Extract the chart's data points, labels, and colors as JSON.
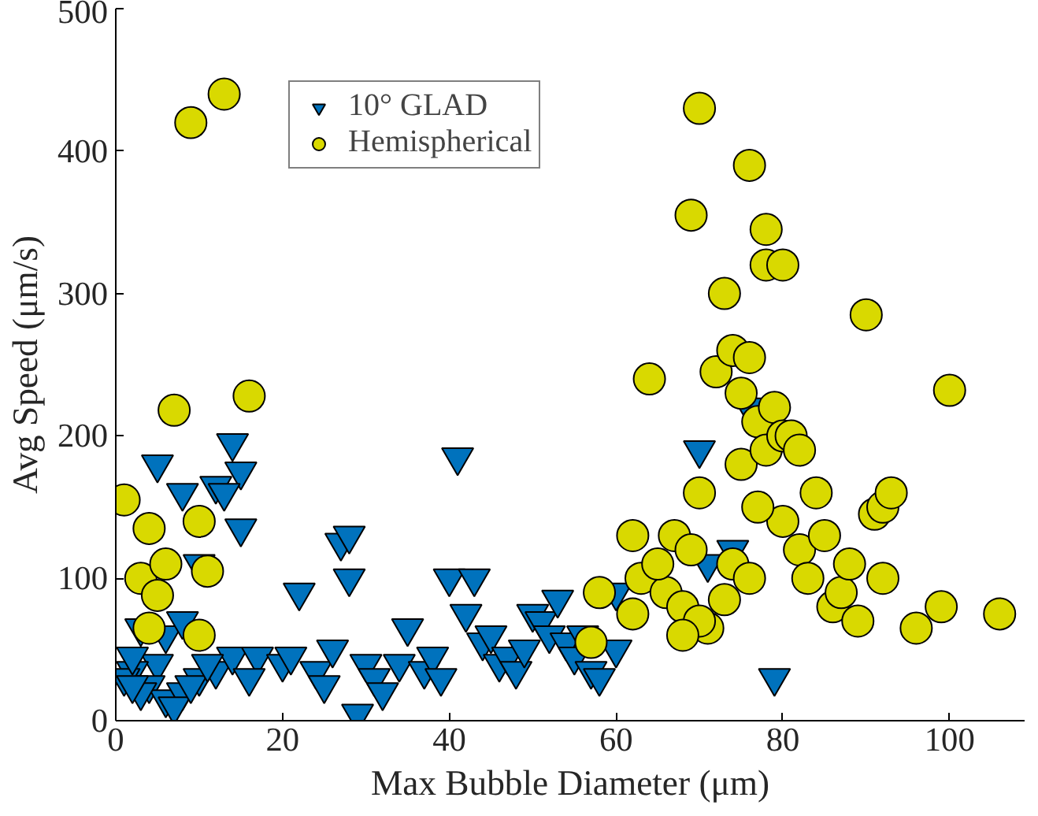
{
  "chart_data": {
    "type": "scatter",
    "xlabel": "Max Bubble Diameter (μm)",
    "ylabel": "Avg Speed (μm/s)",
    "xlim": [
      0,
      109
    ],
    "ylim": [
      0,
      500
    ],
    "xticks": [
      0,
      20,
      40,
      60,
      80,
      100
    ],
    "yticks": [
      0,
      100,
      200,
      300,
      400,
      500
    ],
    "grid": false,
    "legend": "top",
    "series": [
      {
        "name": "10° GLAD",
        "color": "#0072bd",
        "marker": "triangle",
        "x": [
          5,
          8,
          12,
          14,
          15,
          13,
          15,
          3,
          5,
          2,
          4,
          6,
          8,
          10,
          12,
          14,
          17,
          1,
          3,
          7,
          9,
          11,
          16,
          22,
          24,
          27,
          28,
          28,
          29,
          30,
          31,
          32,
          34,
          37,
          38,
          39,
          40,
          41,
          42,
          43,
          44,
          45,
          46,
          47,
          48,
          49,
          50,
          51,
          52,
          53,
          54,
          55,
          56,
          57,
          58,
          60,
          20,
          21,
          25,
          35,
          26,
          70,
          74,
          79,
          76,
          71,
          60,
          2,
          6,
          8,
          2,
          10
        ],
        "values": [
          180,
          160,
          165,
          195,
          175,
          160,
          135,
          65,
          40,
          35,
          25,
          15,
          20,
          30,
          35,
          45,
          45,
          30,
          20,
          10,
          25,
          40,
          30,
          90,
          35,
          125,
          130,
          100,
          5,
          40,
          30,
          20,
          40,
          35,
          45,
          30,
          100,
          185,
          75,
          100,
          55,
          60,
          40,
          45,
          35,
          50,
          75,
          70,
          60,
          85,
          55,
          45,
          60,
          35,
          30,
          50,
          40,
          45,
          25,
          65,
          50,
          190,
          120,
          30,
          220,
          110,
          90,
          45,
          60,
          70,
          25,
          110
        ]
      },
      {
        "name": "Hemispherical",
        "color": "#d9d900",
        "marker": "circle",
        "x": [
          9,
          13,
          7,
          16,
          1,
          4,
          10,
          3,
          5,
          6,
          11,
          4,
          10,
          57,
          58,
          62,
          62,
          63,
          64,
          66,
          67,
          68,
          69,
          69,
          70,
          71,
          72,
          73,
          74,
          75,
          75,
          76,
          76,
          77,
          78,
          78,
          78,
          79,
          80,
          80,
          80,
          81,
          82,
          82,
          83,
          84,
          85,
          86,
          87,
          88,
          89,
          90,
          91,
          92,
          93,
          92,
          96,
          99,
          100,
          106,
          73,
          74,
          76,
          77,
          70,
          70,
          65,
          68
        ],
        "values": [
          420,
          440,
          218,
          228,
          155,
          135,
          140,
          100,
          88,
          110,
          105,
          65,
          60,
          55,
          90,
          75,
          130,
          100,
          240,
          90,
          130,
          80,
          120,
          355,
          430,
          65,
          245,
          300,
          260,
          230,
          180,
          390,
          255,
          210,
          345,
          320,
          190,
          220,
          200,
          320,
          140,
          200,
          190,
          120,
          100,
          160,
          130,
          80,
          90,
          110,
          70,
          285,
          145,
          150,
          160,
          100,
          65,
          80,
          232,
          75,
          85,
          110,
          100,
          150,
          160,
          70,
          110,
          60
        ]
      }
    ]
  }
}
